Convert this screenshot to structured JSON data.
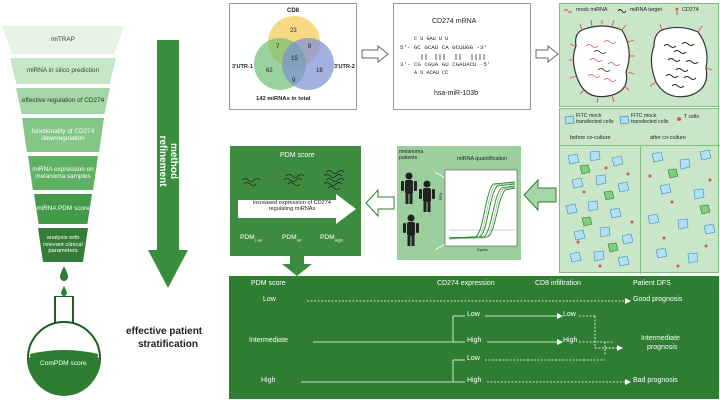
{
  "funnel": {
    "steps": [
      "miTRAP",
      "miRNA in silico prediction",
      "effective regulation of CD274",
      "functionality of CD274 downregulation",
      "miRNA expression on melanoma samples",
      "miRNA PDM score",
      "analysis with relevant clinical parameters"
    ],
    "flask_label": "ComPDM score"
  },
  "method": {
    "vertical_label": "method refinement",
    "result_label_1": "effective patient",
    "result_label_2": "stratification"
  },
  "venn": {
    "label_top": "CD8",
    "label_left": "3'UTR-1",
    "label_right": "3'UTR-2",
    "regions": {
      "top": "23",
      "top_left": "7",
      "top_right": "8",
      "center": "15",
      "left": "62",
      "right": "18",
      "bottom": "9"
    },
    "total": "142 miRNAs in total",
    "colors": {
      "top": "#f2c94c",
      "left": "#6fbf73",
      "right": "#7a8fd6"
    }
  },
  "mrna": {
    "title": "CD274 mRNA",
    "top_strand": "5'- GC GCAU CA GCUUGG -3'",
    "top_loops": "C U    GAU         U    U",
    "bottom_strand": "3'- CG CGUA GU CGAUACU -5'",
    "bottom_loops": "A U    ACAU CC",
    "mirna_name": "hsa-miR-103b",
    "highlight_color": "#d9534f"
  },
  "legend_top": {
    "mock": "mock miRNA",
    "target": "miRNA target",
    "protein": "CD274"
  },
  "coculture": {
    "fitc_mock": "FITC mock transfected cells",
    "fitc_mock2": "FITC mock transfected cells",
    "tcells": "T cells",
    "before": "before co-culture",
    "after": "after co-culture"
  },
  "quant": {
    "patients": "melanoma patients",
    "title": "miRNA quantification",
    "xaxis": "Cycles",
    "yaxis": "RFU"
  },
  "pdm": {
    "title": "PDM score",
    "arrow_text": "increased expression of CD274 regulating miRNAs",
    "low": "PDM",
    "low_sub": "Low",
    "int": "PDM",
    "int_sub": "Int",
    "high": "PDM",
    "high_sub": "High"
  },
  "strat": {
    "col_pdm": "PDM score",
    "col_cd274": "CD274 expression",
    "col_cd8": "CD8 infiltration",
    "col_dfs": "Patient DFS",
    "row_low": "Low",
    "row_int": "Intermediate",
    "row_high": "High",
    "cd274_low": "Low",
    "cd274_high": "High",
    "cd8_low_top": "Low",
    "cd8_high": "High",
    "cd8_low_bottom": "Low",
    "good": "Good prognosis",
    "intermediate_1": "Intermediate",
    "intermediate_2": "prognosis",
    "bad": "Bad prognosis"
  },
  "colors": {
    "dark_green": "#2e7d32",
    "mid_green": "#4caf50",
    "light_green": "#a5d6a7",
    "pale_green": "#dcefdc"
  }
}
